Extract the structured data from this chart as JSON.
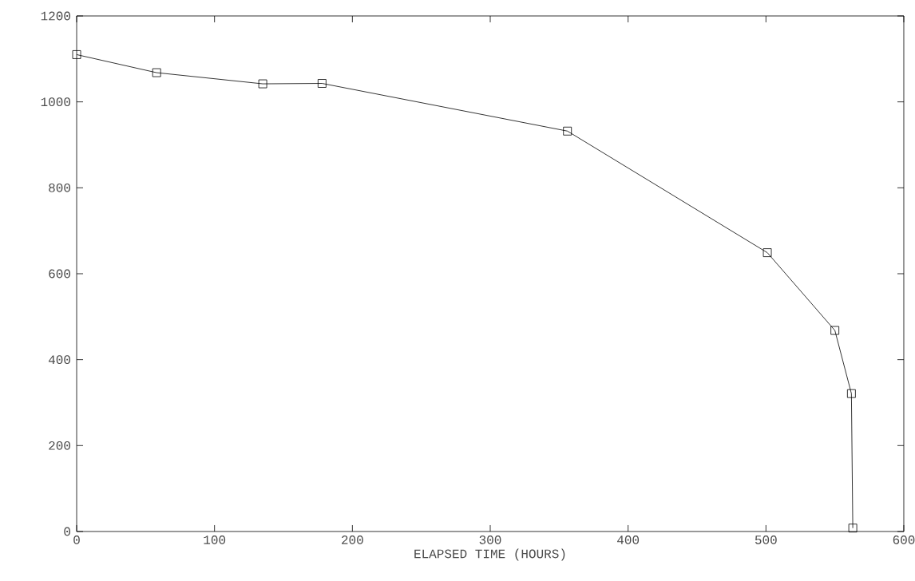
{
  "chart_data": {
    "type": "line",
    "xlabel": "ELAPSED TIME (HOURS)",
    "x": [
      0,
      58,
      135,
      178,
      356,
      501,
      550,
      562,
      563
    ],
    "series": [
      {
        "color": "#000000",
        "values": [
          1110,
          1068,
          1042,
          1043,
          932,
          649,
          468,
          321,
          8
        ]
      }
    ],
    "marker": "square",
    "line_style": "solid",
    "grid": false,
    "xlim": [
      0,
      600
    ],
    "ylim": [
      0,
      1200
    ],
    "xticks": [
      0,
      100,
      200,
      300,
      400,
      500,
      600
    ],
    "yticks": [
      0,
      200,
      400,
      600,
      800,
      1000,
      1200
    ]
  }
}
